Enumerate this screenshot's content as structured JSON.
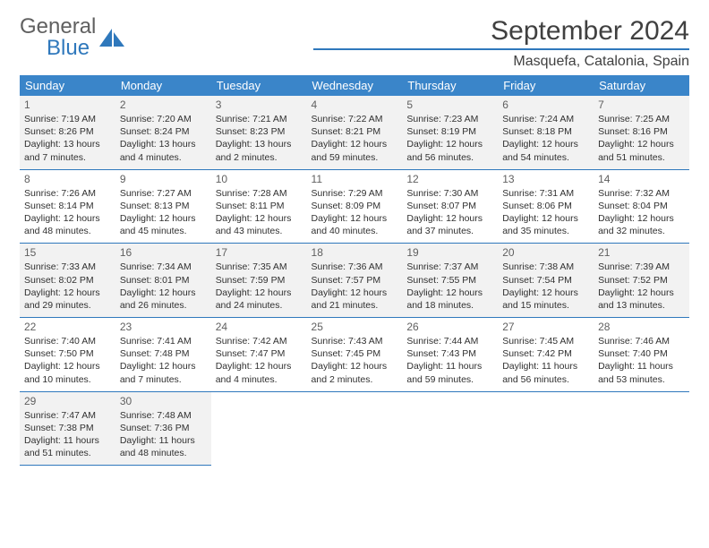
{
  "brand": {
    "name1": "General",
    "name2": "Blue"
  },
  "title": "September 2024",
  "location": "Masquefa, Catalonia, Spain",
  "weekdays": [
    "Sunday",
    "Monday",
    "Tuesday",
    "Wednesday",
    "Thursday",
    "Friday",
    "Saturday"
  ],
  "colors": {
    "accent": "#3a85c9",
    "rule": "#2f78bc",
    "alt_row": "#f2f2f2",
    "text": "#303030",
    "muted": "#606060"
  },
  "days": [
    {
      "n": 1,
      "sr": "7:19 AM",
      "ss": "8:26 PM",
      "dl": "13 hours and 7 minutes."
    },
    {
      "n": 2,
      "sr": "7:20 AM",
      "ss": "8:24 PM",
      "dl": "13 hours and 4 minutes."
    },
    {
      "n": 3,
      "sr": "7:21 AM",
      "ss": "8:23 PM",
      "dl": "13 hours and 2 minutes."
    },
    {
      "n": 4,
      "sr": "7:22 AM",
      "ss": "8:21 PM",
      "dl": "12 hours and 59 minutes."
    },
    {
      "n": 5,
      "sr": "7:23 AM",
      "ss": "8:19 PM",
      "dl": "12 hours and 56 minutes."
    },
    {
      "n": 6,
      "sr": "7:24 AM",
      "ss": "8:18 PM",
      "dl": "12 hours and 54 minutes."
    },
    {
      "n": 7,
      "sr": "7:25 AM",
      "ss": "8:16 PM",
      "dl": "12 hours and 51 minutes."
    },
    {
      "n": 8,
      "sr": "7:26 AM",
      "ss": "8:14 PM",
      "dl": "12 hours and 48 minutes."
    },
    {
      "n": 9,
      "sr": "7:27 AM",
      "ss": "8:13 PM",
      "dl": "12 hours and 45 minutes."
    },
    {
      "n": 10,
      "sr": "7:28 AM",
      "ss": "8:11 PM",
      "dl": "12 hours and 43 minutes."
    },
    {
      "n": 11,
      "sr": "7:29 AM",
      "ss": "8:09 PM",
      "dl": "12 hours and 40 minutes."
    },
    {
      "n": 12,
      "sr": "7:30 AM",
      "ss": "8:07 PM",
      "dl": "12 hours and 37 minutes."
    },
    {
      "n": 13,
      "sr": "7:31 AM",
      "ss": "8:06 PM",
      "dl": "12 hours and 35 minutes."
    },
    {
      "n": 14,
      "sr": "7:32 AM",
      "ss": "8:04 PM",
      "dl": "12 hours and 32 minutes."
    },
    {
      "n": 15,
      "sr": "7:33 AM",
      "ss": "8:02 PM",
      "dl": "12 hours and 29 minutes."
    },
    {
      "n": 16,
      "sr": "7:34 AM",
      "ss": "8:01 PM",
      "dl": "12 hours and 26 minutes."
    },
    {
      "n": 17,
      "sr": "7:35 AM",
      "ss": "7:59 PM",
      "dl": "12 hours and 24 minutes."
    },
    {
      "n": 18,
      "sr": "7:36 AM",
      "ss": "7:57 PM",
      "dl": "12 hours and 21 minutes."
    },
    {
      "n": 19,
      "sr": "7:37 AM",
      "ss": "7:55 PM",
      "dl": "12 hours and 18 minutes."
    },
    {
      "n": 20,
      "sr": "7:38 AM",
      "ss": "7:54 PM",
      "dl": "12 hours and 15 minutes."
    },
    {
      "n": 21,
      "sr": "7:39 AM",
      "ss": "7:52 PM",
      "dl": "12 hours and 13 minutes."
    },
    {
      "n": 22,
      "sr": "7:40 AM",
      "ss": "7:50 PM",
      "dl": "12 hours and 10 minutes."
    },
    {
      "n": 23,
      "sr": "7:41 AM",
      "ss": "7:48 PM",
      "dl": "12 hours and 7 minutes."
    },
    {
      "n": 24,
      "sr": "7:42 AM",
      "ss": "7:47 PM",
      "dl": "12 hours and 4 minutes."
    },
    {
      "n": 25,
      "sr": "7:43 AM",
      "ss": "7:45 PM",
      "dl": "12 hours and 2 minutes."
    },
    {
      "n": 26,
      "sr": "7:44 AM",
      "ss": "7:43 PM",
      "dl": "11 hours and 59 minutes."
    },
    {
      "n": 27,
      "sr": "7:45 AM",
      "ss": "7:42 PM",
      "dl": "11 hours and 56 minutes."
    },
    {
      "n": 28,
      "sr": "7:46 AM",
      "ss": "7:40 PM",
      "dl": "11 hours and 53 minutes."
    },
    {
      "n": 29,
      "sr": "7:47 AM",
      "ss": "7:38 PM",
      "dl": "11 hours and 51 minutes."
    },
    {
      "n": 30,
      "sr": "7:48 AM",
      "ss": "7:36 PM",
      "dl": "11 hours and 48 minutes."
    }
  ],
  "labels": {
    "sunrise": "Sunrise:",
    "sunset": "Sunset:",
    "daylight": "Daylight:"
  },
  "start_weekday": 0
}
